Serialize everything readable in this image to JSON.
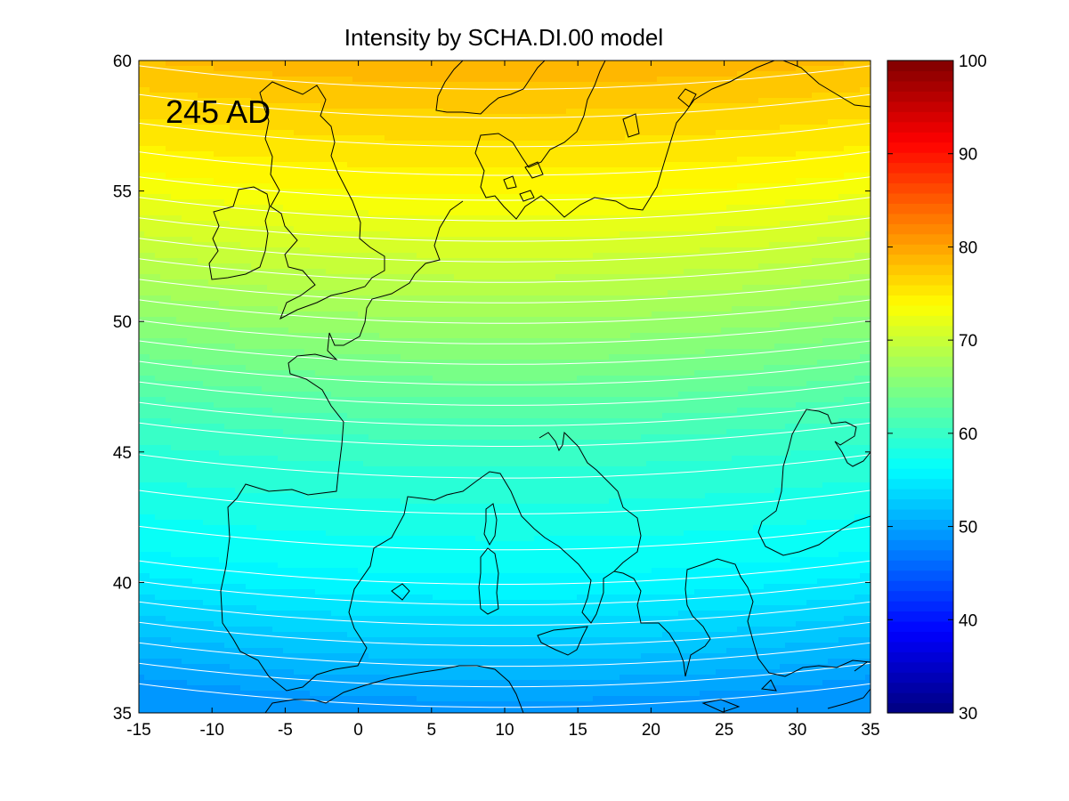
{
  "chart_data": [
    {
      "type": "heatmap",
      "title": "Intensity by SCHA.DI.00 model",
      "annotation": "245 AD",
      "xlabel": "",
      "ylabel": "",
      "xlim": [
        -15,
        35
      ],
      "ylim": [
        35,
        60
      ],
      "x_ticks": [
        -15,
        -10,
        -5,
        0,
        5,
        10,
        15,
        20,
        25,
        30,
        35
      ],
      "y_ticks": [
        35,
        40,
        45,
        50,
        55,
        60
      ],
      "contour_color": "#ffffff",
      "coastline_color": "#000000",
      "grid": false,
      "field_samples": [
        {
          "lat": 60,
          "intensity": 79
        },
        {
          "lat": 55,
          "intensity": 74
        },
        {
          "lat": 50,
          "intensity": 67
        },
        {
          "lat": 45,
          "intensity": 60
        },
        {
          "lat": 40,
          "intensity": 56
        },
        {
          "lat": 35,
          "intensity": 49
        }
      ]
    },
    {
      "type": "colorbar",
      "colormap": "jet",
      "range": [
        30,
        100
      ],
      "ticks": [
        30,
        40,
        50,
        60,
        70,
        80,
        90,
        100
      ],
      "levels": 64,
      "legend_position": "right"
    }
  ]
}
